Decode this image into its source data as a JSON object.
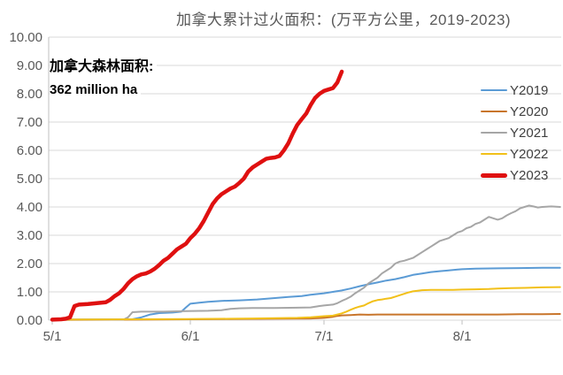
{
  "chart_data": {
    "type": "line",
    "title": "加拿大累计过火面积：(万平方公里，2019-2023)",
    "annotation": {
      "line1": "加拿大森林面积:",
      "line2": "362 million ha"
    },
    "y_axis": {
      "min": 0,
      "max": 10,
      "step": 1,
      "tick_labels": [
        "0.00",
        "1.00",
        "2.00",
        "3.00",
        "4.00",
        "5.00",
        "6.00",
        "7.00",
        "8.00",
        "9.00",
        "10.00"
      ],
      "label_color": "#595959",
      "gridline_color": "#d9d9d9",
      "axis_line_color": "#bfbfbf"
    },
    "x_axis": {
      "tick_labels": [
        "5/1",
        "6/1",
        "7/1",
        "8/1"
      ],
      "tick_days": [
        0,
        31,
        61,
        92
      ],
      "days_total": 114,
      "label_color": "#595959"
    },
    "legend_position": "right",
    "series": [
      {
        "name": "Y2019",
        "color": "#5b9bd5",
        "width": 2,
        "points": [
          [
            0,
            0.02
          ],
          [
            18,
            0.03
          ],
          [
            20,
            0.1
          ],
          [
            22,
            0.2
          ],
          [
            24,
            0.25
          ],
          [
            27,
            0.27
          ],
          [
            29,
            0.3
          ],
          [
            30,
            0.45
          ],
          [
            31,
            0.58
          ],
          [
            33,
            0.62
          ],
          [
            35,
            0.65
          ],
          [
            38,
            0.68
          ],
          [
            42,
            0.7
          ],
          [
            46,
            0.73
          ],
          [
            50,
            0.78
          ],
          [
            53,
            0.82
          ],
          [
            56,
            0.85
          ],
          [
            58,
            0.9
          ],
          [
            61,
            0.95
          ],
          [
            63,
            1.0
          ],
          [
            65,
            1.05
          ],
          [
            67,
            1.12
          ],
          [
            69,
            1.2
          ],
          [
            71,
            1.27
          ],
          [
            73,
            1.33
          ],
          [
            75,
            1.4
          ],
          [
            77,
            1.45
          ],
          [
            79,
            1.52
          ],
          [
            81,
            1.6
          ],
          [
            83,
            1.65
          ],
          [
            85,
            1.7
          ],
          [
            87,
            1.73
          ],
          [
            89,
            1.76
          ],
          [
            91,
            1.79
          ],
          [
            92,
            1.8
          ],
          [
            95,
            1.82
          ],
          [
            100,
            1.83
          ],
          [
            105,
            1.84
          ],
          [
            110,
            1.85
          ],
          [
            114,
            1.85
          ]
        ]
      },
      {
        "name": "Y2020",
        "color": "#c8752b",
        "width": 2,
        "points": [
          [
            0,
            0.01
          ],
          [
            20,
            0.02
          ],
          [
            31,
            0.03
          ],
          [
            40,
            0.04
          ],
          [
            50,
            0.05
          ],
          [
            58,
            0.06
          ],
          [
            61,
            0.08
          ],
          [
            63,
            0.12
          ],
          [
            64,
            0.15
          ],
          [
            65,
            0.17
          ],
          [
            67,
            0.18
          ],
          [
            69,
            0.2
          ],
          [
            71,
            0.19
          ],
          [
            73,
            0.2
          ],
          [
            90,
            0.2
          ],
          [
            100,
            0.2
          ],
          [
            105,
            0.21
          ],
          [
            110,
            0.21
          ],
          [
            114,
            0.22
          ]
        ]
      },
      {
        "name": "Y2021",
        "color": "#a6a6a6",
        "width": 2,
        "points": [
          [
            0,
            0.02
          ],
          [
            16,
            0.02
          ],
          [
            17,
            0.1
          ],
          [
            18,
            0.28
          ],
          [
            20,
            0.3
          ],
          [
            25,
            0.3
          ],
          [
            30,
            0.32
          ],
          [
            35,
            0.33
          ],
          [
            38,
            0.35
          ],
          [
            40,
            0.4
          ],
          [
            42,
            0.42
          ],
          [
            45,
            0.43
          ],
          [
            50,
            0.43
          ],
          [
            55,
            0.44
          ],
          [
            58,
            0.45
          ],
          [
            60,
            0.5
          ],
          [
            61,
            0.52
          ],
          [
            63,
            0.55
          ],
          [
            64,
            0.6
          ],
          [
            65,
            0.68
          ],
          [
            66,
            0.75
          ],
          [
            67,
            0.83
          ],
          [
            68,
            0.95
          ],
          [
            69,
            1.05
          ],
          [
            70,
            1.15
          ],
          [
            71,
            1.3
          ],
          [
            72,
            1.4
          ],
          [
            73,
            1.5
          ],
          [
            74,
            1.65
          ],
          [
            75,
            1.75
          ],
          [
            76,
            1.85
          ],
          [
            77,
            2.0
          ],
          [
            78,
            2.07
          ],
          [
            79,
            2.1
          ],
          [
            80,
            2.15
          ],
          [
            81,
            2.2
          ],
          [
            82,
            2.3
          ],
          [
            83,
            2.4
          ],
          [
            84,
            2.5
          ],
          [
            85,
            2.6
          ],
          [
            86,
            2.7
          ],
          [
            87,
            2.8
          ],
          [
            88,
            2.85
          ],
          [
            89,
            2.9
          ],
          [
            90,
            3.0
          ],
          [
            91,
            3.1
          ],
          [
            92,
            3.15
          ],
          [
            93,
            3.25
          ],
          [
            94,
            3.3
          ],
          [
            95,
            3.4
          ],
          [
            96,
            3.45
          ],
          [
            97,
            3.55
          ],
          [
            98,
            3.65
          ],
          [
            99,
            3.6
          ],
          [
            100,
            3.55
          ],
          [
            101,
            3.6
          ],
          [
            102,
            3.7
          ],
          [
            103,
            3.78
          ],
          [
            104,
            3.85
          ],
          [
            105,
            3.95
          ],
          [
            106,
            4.0
          ],
          [
            107,
            4.05
          ],
          [
            108,
            4.02
          ],
          [
            109,
            3.98
          ],
          [
            110,
            4.0
          ],
          [
            112,
            4.02
          ],
          [
            114,
            4.0
          ]
        ]
      },
      {
        "name": "Y2022",
        "color": "#f2c019",
        "width": 2,
        "points": [
          [
            0,
            0.02
          ],
          [
            20,
            0.03
          ],
          [
            30,
            0.04
          ],
          [
            40,
            0.05
          ],
          [
            45,
            0.06
          ],
          [
            50,
            0.07
          ],
          [
            55,
            0.08
          ],
          [
            58,
            0.1
          ],
          [
            61,
            0.14
          ],
          [
            63,
            0.16
          ],
          [
            64,
            0.2
          ],
          [
            65,
            0.24
          ],
          [
            66,
            0.3
          ],
          [
            67,
            0.37
          ],
          [
            68,
            0.43
          ],
          [
            69,
            0.48
          ],
          [
            70,
            0.52
          ],
          [
            71,
            0.6
          ],
          [
            72,
            0.67
          ],
          [
            73,
            0.71
          ],
          [
            74,
            0.73
          ],
          [
            75,
            0.76
          ],
          [
            76,
            0.78
          ],
          [
            77,
            0.83
          ],
          [
            78,
            0.88
          ],
          [
            79,
            0.93
          ],
          [
            80,
            0.98
          ],
          [
            81,
            1.02
          ],
          [
            82,
            1.04
          ],
          [
            83,
            1.06
          ],
          [
            85,
            1.07
          ],
          [
            90,
            1.07
          ],
          [
            92,
            1.08
          ],
          [
            95,
            1.09
          ],
          [
            98,
            1.1
          ],
          [
            100,
            1.12
          ],
          [
            103,
            1.13
          ],
          [
            106,
            1.14
          ],
          [
            110,
            1.16
          ],
          [
            114,
            1.17
          ]
        ]
      },
      {
        "name": "Y2023",
        "color": "#df1010",
        "width": 4.5,
        "points": [
          [
            0,
            0.02
          ],
          [
            2,
            0.03
          ],
          [
            3,
            0.05
          ],
          [
            4,
            0.1
          ],
          [
            5,
            0.5
          ],
          [
            6,
            0.55
          ],
          [
            8,
            0.57
          ],
          [
            10,
            0.6
          ],
          [
            12,
            0.63
          ],
          [
            13,
            0.72
          ],
          [
            14,
            0.85
          ],
          [
            15,
            0.95
          ],
          [
            16,
            1.1
          ],
          [
            17,
            1.3
          ],
          [
            18,
            1.45
          ],
          [
            19,
            1.55
          ],
          [
            20,
            1.62
          ],
          [
            21,
            1.65
          ],
          [
            22,
            1.72
          ],
          [
            23,
            1.82
          ],
          [
            24,
            1.95
          ],
          [
            25,
            2.1
          ],
          [
            26,
            2.2
          ],
          [
            27,
            2.35
          ],
          [
            28,
            2.5
          ],
          [
            29,
            2.6
          ],
          [
            30,
            2.7
          ],
          [
            31,
            2.9
          ],
          [
            32,
            3.05
          ],
          [
            33,
            3.25
          ],
          [
            34,
            3.5
          ],
          [
            35,
            3.8
          ],
          [
            36,
            4.1
          ],
          [
            37,
            4.3
          ],
          [
            38,
            4.45
          ],
          [
            39,
            4.55
          ],
          [
            40,
            4.65
          ],
          [
            41,
            4.72
          ],
          [
            42,
            4.85
          ],
          [
            43,
            5.0
          ],
          [
            44,
            5.25
          ],
          [
            45,
            5.4
          ],
          [
            46,
            5.5
          ],
          [
            47,
            5.6
          ],
          [
            48,
            5.7
          ],
          [
            49,
            5.73
          ],
          [
            50,
            5.75
          ],
          [
            51,
            5.8
          ],
          [
            52,
            6.0
          ],
          [
            53,
            6.25
          ],
          [
            54,
            6.6
          ],
          [
            55,
            6.9
          ],
          [
            56,
            7.1
          ],
          [
            57,
            7.3
          ],
          [
            58,
            7.6
          ],
          [
            59,
            7.85
          ],
          [
            60,
            8.0
          ],
          [
            61,
            8.1
          ],
          [
            62,
            8.15
          ],
          [
            63,
            8.2
          ],
          [
            64,
            8.4
          ],
          [
            65,
            8.78
          ]
        ]
      }
    ]
  }
}
